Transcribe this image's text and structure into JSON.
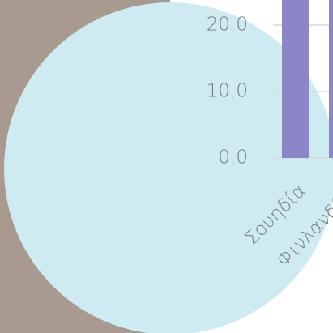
{
  "chart_data": {
    "type": "bar",
    "categories": [
      "Σουηδία",
      "Φινλανδία"
    ],
    "values": [
      25,
      25
    ],
    "color": "#8a86c8",
    "ylim": [
      0,
      25
    ],
    "yticks": [
      {
        "value": 0,
        "label": "0,0"
      },
      {
        "value": 10,
        "label": "10,0"
      },
      {
        "value": 20,
        "label": "20,0"
      }
    ],
    "grid": true
  }
}
